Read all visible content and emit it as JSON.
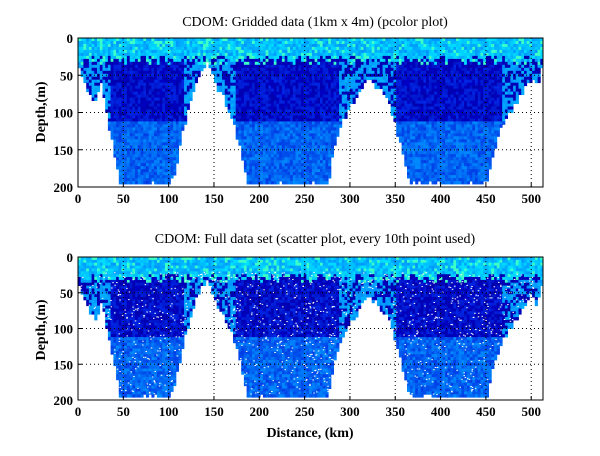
{
  "chart_data": [
    {
      "type": "heatmap",
      "title": "CDOM: Gridded data (1km x 4m) (pcolor plot)",
      "xlabel": "",
      "ylabel": "Depth,(m)",
      "xlim": [
        0,
        513
      ],
      "ylim": [
        200,
        0
      ],
      "xticks": [
        "0",
        "50",
        "100",
        "150",
        "200",
        "250",
        "300",
        "350",
        "400",
        "450",
        "500"
      ],
      "yticks": [
        "0",
        "50",
        "100",
        "150",
        "200"
      ],
      "grid": true,
      "colormap": "jet (lower range: dark blue to cyan/green)",
      "data_max_depth_profile": {
        "distance_km": [
          0,
          10,
          18,
          25,
          30,
          40,
          45,
          100,
          105,
          115,
          125,
          135,
          142,
          150,
          160,
          170,
          180,
          185,
          275,
          280,
          290,
          300,
          310,
          318,
          325,
          340,
          350,
          360,
          365,
          450,
          455,
          465,
          480,
          490,
          500,
          505,
          510,
          513
        ],
        "depth_m": [
          40,
          70,
          85,
          60,
          100,
          160,
          195,
          195,
          180,
          120,
          70,
          40,
          30,
          60,
          80,
          110,
          160,
          195,
          195,
          150,
          110,
          90,
          70,
          50,
          60,
          80,
          120,
          170,
          195,
          195,
          160,
          120,
          90,
          70,
          50,
          65,
          40,
          20
        ]
      }
    },
    {
      "type": "scatter",
      "title": "CDOM: Full data set (scatter plot, every 10th point used)",
      "xlabel": "Distance, (km)",
      "ylabel": "Depth,(m)",
      "xlim": [
        0,
        513
      ],
      "ylim": [
        200,
        0
      ],
      "xticks": [
        "0",
        "50",
        "100",
        "150",
        "200",
        "250",
        "300",
        "350",
        "400",
        "450",
        "500"
      ],
      "yticks": [
        "0",
        "50",
        "100",
        "150",
        "200"
      ],
      "grid": true,
      "colormap": "jet (lower range: dark blue to cyan/green)"
    }
  ]
}
